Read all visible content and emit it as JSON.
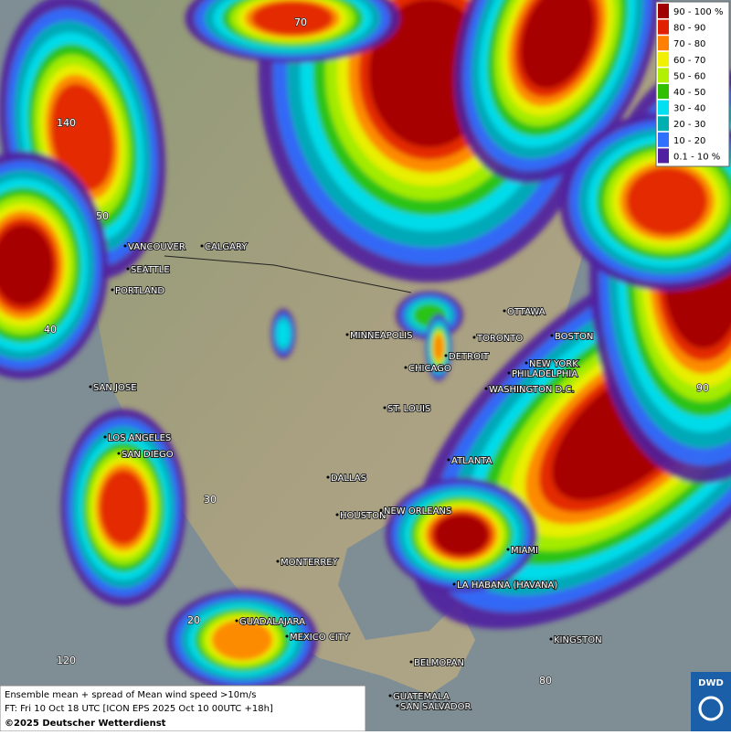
{
  "legend": {
    "items": [
      {
        "label": "90 - 100 %",
        "color": "#a00000"
      },
      {
        "label": "80 - 90",
        "color": "#e02000"
      },
      {
        "label": "70 - 80",
        "color": "#ff8000"
      },
      {
        "label": "60 - 70",
        "color": "#f0f000"
      },
      {
        "label": "50 - 60",
        "color": "#b0f000"
      },
      {
        "label": "40 - 50",
        "color": "#30c000"
      },
      {
        "label": "30 - 40",
        "color": "#00e0f0"
      },
      {
        "label": "20 - 30",
        "color": "#00b0b0"
      },
      {
        "label": "10 - 20",
        "color": "#3070ff"
      },
      {
        "label": "0.1 - 10 %",
        "color": "#5020a0"
      }
    ]
  },
  "cities": [
    "VANCOUVER",
    "CALGARY",
    "SEATTLE",
    "PORTLAND",
    "SAN JOSE",
    "LOS ANGELES",
    "SAN DIEGO",
    "DALLAS",
    "HOUSTON",
    "NEW ORLEANS",
    "MONTERREY",
    "GUADALAJARA",
    "MEXICO CITY",
    "BELMOPAN",
    "GUATEMALA",
    "SAN SALVADOR",
    "LA HABANA (HAVANA)",
    "KINGSTON",
    "MIAMI",
    "ATLANTA",
    "ST. LOUIS",
    "CHICAGO",
    "DETROIT",
    "TORONTO",
    "MINNEAPOLIS",
    "OTTAWA",
    "BOSTON",
    "NEW YORK",
    "PHILADELPHIA",
    "WASHINGTON D.C."
  ],
  "grid_labels": [
    "140",
    "50",
    "40",
    "30",
    "20",
    "120",
    "80",
    "70",
    "90"
  ],
  "caption": {
    "line1": "Ensemble mean + spread of Mean wind speed >10m/s",
    "line2": "FT: Fri 10 Oct 18 UTC [ICON EPS 2025 Oct 10 00UTC +18h]",
    "line3": "©2025 Deutscher Wetterdienst"
  },
  "logo": "DWD"
}
